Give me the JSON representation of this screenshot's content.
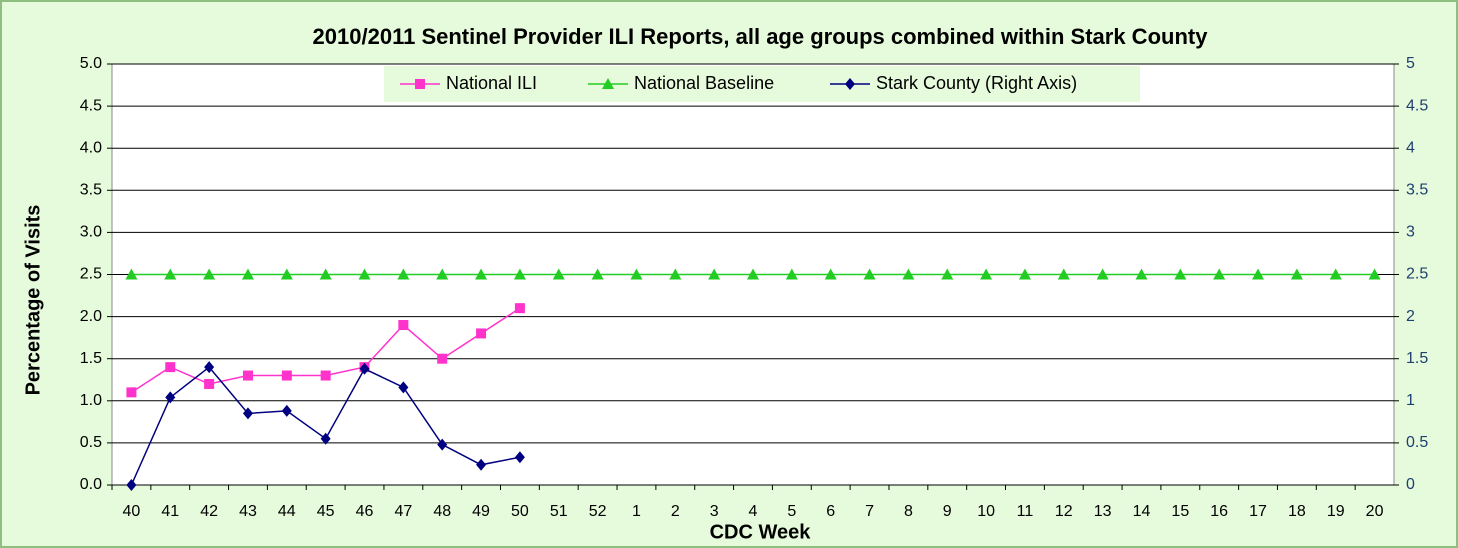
{
  "chart_data": {
    "type": "line",
    "title": "2010/2011 Sentinel Provider ILI Reports, all age groups combined within Stark County",
    "xlabel": "CDC Week",
    "ylabel": "Percentage of Visits",
    "categories": [
      "40",
      "41",
      "42",
      "43",
      "44",
      "45",
      "46",
      "47",
      "48",
      "49",
      "50",
      "51",
      "52",
      "1",
      "2",
      "3",
      "4",
      "5",
      "6",
      "7",
      "8",
      "9",
      "10",
      "11",
      "12",
      "13",
      "14",
      "15",
      "16",
      "17",
      "18",
      "19",
      "20"
    ],
    "series": [
      {
        "name": "National ILI",
        "color": "#ff33cc",
        "marker": "square",
        "values": [
          1.1,
          1.4,
          1.2,
          1.3,
          1.3,
          1.3,
          1.4,
          1.9,
          1.5,
          1.8,
          2.1,
          null,
          null,
          null,
          null,
          null,
          null,
          null,
          null,
          null,
          null,
          null,
          null,
          null,
          null,
          null,
          null,
          null,
          null,
          null,
          null,
          null,
          null
        ]
      },
      {
        "name": "National Baseline",
        "color": "#22cc22",
        "marker": "triangle",
        "values": [
          2.5,
          2.5,
          2.5,
          2.5,
          2.5,
          2.5,
          2.5,
          2.5,
          2.5,
          2.5,
          2.5,
          2.5,
          2.5,
          2.5,
          2.5,
          2.5,
          2.5,
          2.5,
          2.5,
          2.5,
          2.5,
          2.5,
          2.5,
          2.5,
          2.5,
          2.5,
          2.5,
          2.5,
          2.5,
          2.5,
          2.5,
          2.5,
          2.5
        ]
      },
      {
        "name": "Stark County (Right Axis)",
        "color": "#000080",
        "marker": "diamond",
        "axis": "y2",
        "values": [
          0,
          1.04,
          1.4,
          0.85,
          0.88,
          0.55,
          1.38,
          1.16,
          0.48,
          0.24,
          0.33,
          null,
          null,
          null,
          null,
          null,
          null,
          null,
          null,
          null,
          null,
          null,
          null,
          null,
          null,
          null,
          null,
          null,
          null,
          null,
          null,
          null,
          null
        ]
      }
    ],
    "ylim": [
      0,
      5
    ],
    "yticks": [
      {
        "value": 0,
        "label": "0.0"
      },
      0.5,
      {
        "value": 1,
        "label": "1.0"
      },
      1.5,
      {
        "value": 2,
        "label": "2.0"
      },
      2.5,
      {
        "value": 3,
        "label": "3.0"
      },
      3.5,
      {
        "value": 4,
        "label": "4.0"
      },
      4.5,
      {
        "value": 5,
        "label": "5.0"
      }
    ],
    "y2lim": [
      0,
      5
    ],
    "y2ticks": [
      0,
      0.5,
      1,
      1.5,
      2,
      2.5,
      3,
      3.5,
      4,
      4.5,
      5
    ],
    "grid": true,
    "legend": "top"
  }
}
